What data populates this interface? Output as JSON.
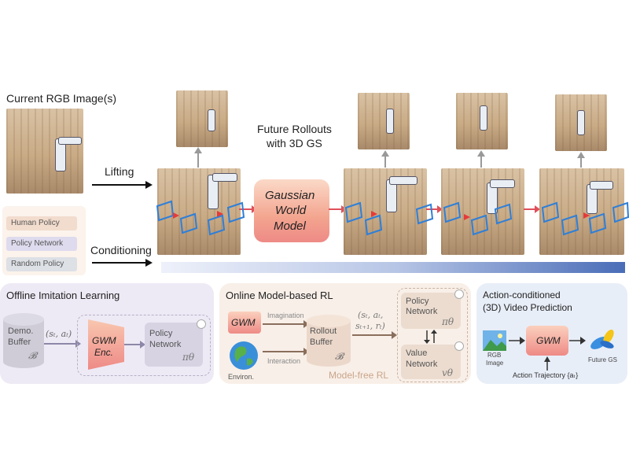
{
  "top": {
    "current_label": "Current RGB Image(s)",
    "lifting_label": "Lifting",
    "conditioning_label": "Conditioning",
    "future_label_line1": "Future Rollouts",
    "future_label_line2": "with 3D GS",
    "gwm_line1": "Gaussian",
    "gwm_line2": "World",
    "gwm_line3": "Model",
    "policies": [
      "Human Policy",
      "Policy Network",
      "Random Policy"
    ]
  },
  "panel1": {
    "title": "Offline Imitation Learning",
    "buffer_line1": "Demo.",
    "buffer_line2": "Buffer",
    "buffer_symbol": "𝓑",
    "arrow_label": "(sₜ, aₜ)",
    "enc_line1": "GWM",
    "enc_line2": "Enc.",
    "policy_line1": "Policy",
    "policy_line2": "Network",
    "policy_symbol": "πθ"
  },
  "panel2": {
    "title": "Online Model-based RL",
    "gwm": "GWM",
    "environ": "Environ.",
    "imagination": "Imagination",
    "interaction": "Interaction",
    "rollout_line1": "Rollout",
    "rollout_line2": "Buffer",
    "rollout_symbol": "𝓑",
    "tuple_line1": "(sₜ, aₜ,",
    "tuple_line2": "sₜ₊₁, rₜ)",
    "policy_line1": "Policy",
    "policy_line2": "Network",
    "policy_symbol": "πθ",
    "value_line1": "Value",
    "value_line2": "Network",
    "value_symbol": "vθ",
    "modelfree": "Model-free RL"
  },
  "panel3": {
    "title_line1": "Action-conditioned",
    "title_line2": "(3D) Video Prediction",
    "rgb_line1": "RGB",
    "rgb_line2": "Image",
    "gwm": "GWM",
    "future_gs": "Future GS",
    "traj": "Action Trajectory {aₜ}"
  },
  "colors": {
    "accent_arrow": "#e0505a",
    "gradient_bar": "#4a6db8",
    "panel1_bg": "#eeeaf5",
    "panel2_bg": "#f8efe8",
    "panel3_bg": "#e8eef8"
  }
}
